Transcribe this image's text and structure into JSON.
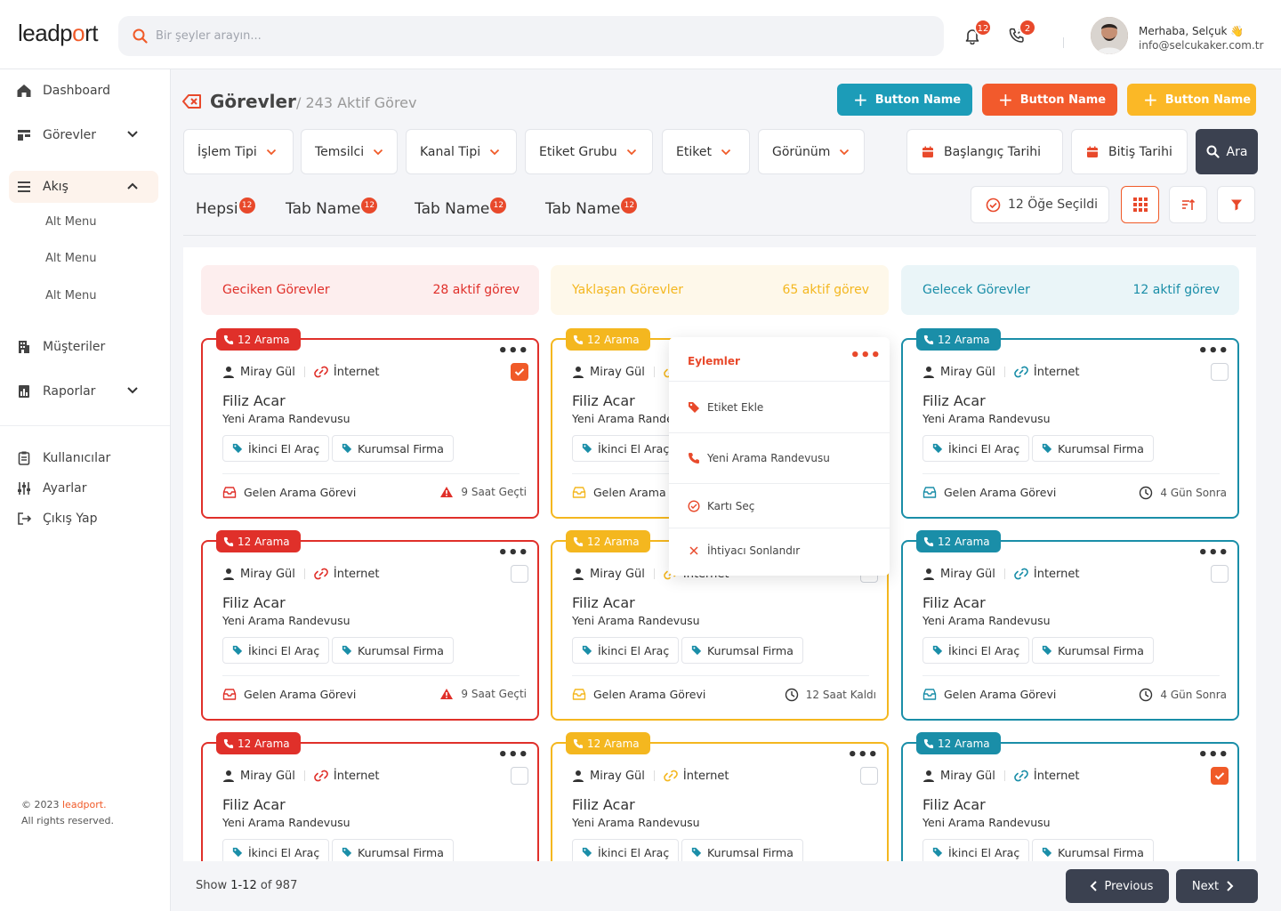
{
  "brand": {
    "logo_pre": "leadp",
    "logo_o": "o",
    "logo_post": "rt"
  },
  "search": {
    "placeholder": "Bir şeyler arayın..."
  },
  "notifications": {
    "bell_count": "12",
    "call_count": "2"
  },
  "user": {
    "greeting": "Merhaba, Selçuk 👋",
    "email": "info@selcukaker.com.tr"
  },
  "sidebar": {
    "dashboard": "Dashboard",
    "gorevler": "Görevler",
    "akis": "Akış",
    "sub": [
      "Alt Menu",
      "Alt Menu",
      "Alt Menu"
    ],
    "musteriler": "Müşteriler",
    "raporlar": "Raporlar",
    "kullanicilar": "Kullanıcılar",
    "ayarlar": "Ayarlar",
    "cikis": "Çıkış Yap"
  },
  "footer": {
    "year": "© 2023 ",
    "brand": "leadport.",
    "rights": "All rights reserved."
  },
  "page": {
    "title": "Görevler",
    "subtitle": "/ 243 Aktif Görev"
  },
  "header_buttons": [
    {
      "label": "Button Name",
      "color": "#1c9cb8"
    },
    {
      "label": "Button Name",
      "color": "#f25a2c"
    },
    {
      "label": "Button Name",
      "color": "#fbb826"
    }
  ],
  "filters": [
    "İşlem Tipi",
    "Temsilci",
    "Kanal Tipi",
    "Etiket Grubu",
    "Etiket",
    "Görünüm"
  ],
  "dates": {
    "start": "Başlangıç Tarihi",
    "end": "Bitiş Tarihi",
    "search": "Ara"
  },
  "tabs": [
    {
      "label": "Hepsi",
      "count": "12"
    },
    {
      "label": "Tab Name",
      "count": "12"
    },
    {
      "label": "Tab Name",
      "count": "12"
    },
    {
      "label": "Tab Name",
      "count": "12"
    }
  ],
  "selection": {
    "label": "12 Öğe Seçildi"
  },
  "columns": [
    {
      "title": "Geciken Görevler",
      "count": "28 aktif görev",
      "color": "#e0302a",
      "bg": "#fdeeee"
    },
    {
      "title": "Yaklaşan Görevler",
      "count": "65 aktif görev",
      "color": "#f4b71f",
      "bg": "#fef8ea"
    },
    {
      "title": "Gelecek Görevler",
      "count": "12 aktif görev",
      "color": "#1a8ea8",
      "bg": "#eaf5f8"
    }
  ],
  "card": {
    "badge": "12 Arama",
    "person": "Miray Gül",
    "channel": "İnternet",
    "name": "Filiz Acar",
    "task": "Yeni Arama Randevusu",
    "tag1": "İkinci El Araç",
    "tag2": "Kurumsal Firma",
    "type": "Gelen Arama Görevi",
    "time_late": "9 Saat Geçti",
    "time_soon": "12 Saat Kaldı",
    "time_future": "4 Gün Sonra"
  },
  "menu": {
    "title": "Eylemler",
    "items": [
      "Etiket Ekle",
      "Yeni Arama Randevusu",
      "Kartı Seç",
      "İhtiyacı Sonlandır"
    ]
  },
  "pagination": {
    "show": "Show ",
    "range": "1-12",
    "of": " of 987",
    "prev": "Previous",
    "next": "Next"
  }
}
